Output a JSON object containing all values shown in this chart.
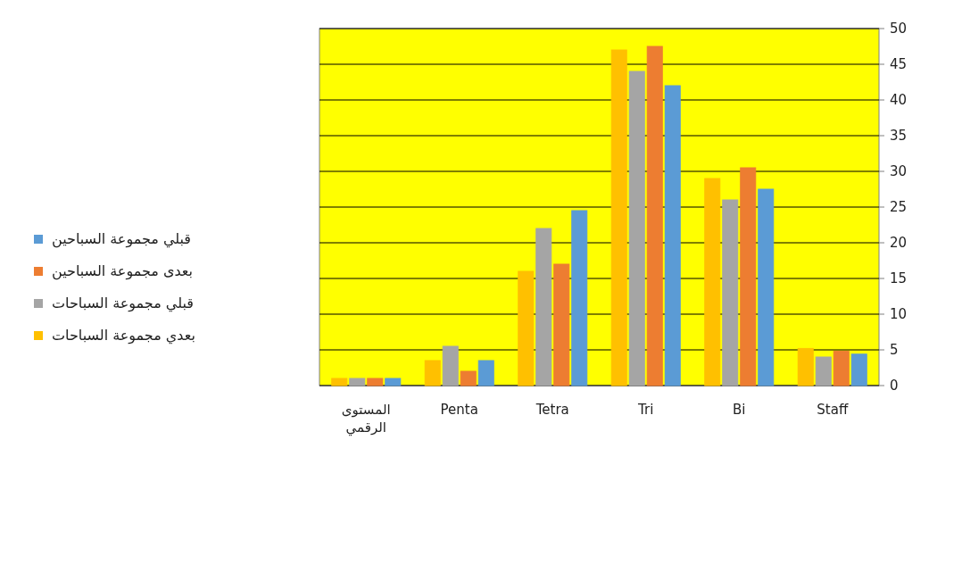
{
  "chart_data": {
    "type": "bar",
    "categories": [
      "المستوى الرقمي",
      "Penta",
      "Tetra",
      "Tri",
      "Bi",
      "Staff"
    ],
    "series": [
      {
        "name": "بعدي مجموعة السباحات",
        "color": "#ffc000",
        "values": [
          1,
          3.5,
          16,
          47,
          29,
          5.2
        ]
      },
      {
        "name": "قبلي مجموعة السباحات",
        "color": "#a5a5a5",
        "values": [
          1,
          5.5,
          22,
          44,
          26,
          4
        ]
      },
      {
        "name": "بعدى مجموعة السباحين",
        "color": "#ed7d31",
        "values": [
          1,
          2,
          17,
          47.5,
          30.5,
          4.8
        ]
      },
      {
        "name": "قبلي مجموعة السباحين",
        "color": "#5b9bd5",
        "values": [
          1,
          3.5,
          24.5,
          42,
          27.5,
          4.4
        ]
      }
    ],
    "ylim": [
      0,
      50
    ],
    "yticks": [
      0,
      5,
      10,
      15,
      20,
      25,
      30,
      35,
      40,
      45,
      50
    ],
    "grid": "y",
    "legend": "left"
  }
}
